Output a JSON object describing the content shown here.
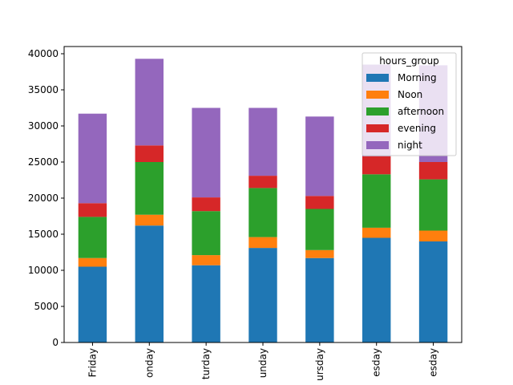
{
  "chart_data": {
    "type": "bar",
    "stacked": true,
    "categories": [
      "Friday",
      "Monday",
      "Saturday",
      "Sunday",
      "Thursday",
      "Tuesday",
      "Wednesday"
    ],
    "tick_labels_visible": [
      "Friday",
      "onday",
      "turday",
      "unday",
      "ursday",
      "esday",
      "esday"
    ],
    "series": [
      {
        "name": "Morning",
        "color": "#1f77b4",
        "values": [
          10500,
          16200,
          10700,
          13100,
          11700,
          14500,
          14000
        ]
      },
      {
        "name": "Noon",
        "color": "#ff7f0e",
        "values": [
          1200,
          1500,
          1400,
          1500,
          1100,
          1400,
          1500
        ]
      },
      {
        "name": "afternoon",
        "color": "#2ca02c",
        "values": [
          5700,
          7300,
          6100,
          6800,
          5700,
          7400,
          7100
        ]
      },
      {
        "name": "evening",
        "color": "#d62728",
        "values": [
          1900,
          2300,
          1900,
          1700,
          1800,
          2500,
          2400
        ]
      },
      {
        "name": "night",
        "color": "#9467bd",
        "values": [
          12400,
          12000,
          12400,
          9400,
          11000,
          12700,
          13400
        ]
      }
    ],
    "legend_title": "hours_group",
    "legend_position": "top-right",
    "ylim": [
      0,
      41000
    ],
    "yticks": [
      0,
      5000,
      10000,
      15000,
      20000,
      25000,
      30000,
      35000,
      40000
    ],
    "grid": false,
    "xlabel": "",
    "ylabel": "",
    "title": ""
  }
}
